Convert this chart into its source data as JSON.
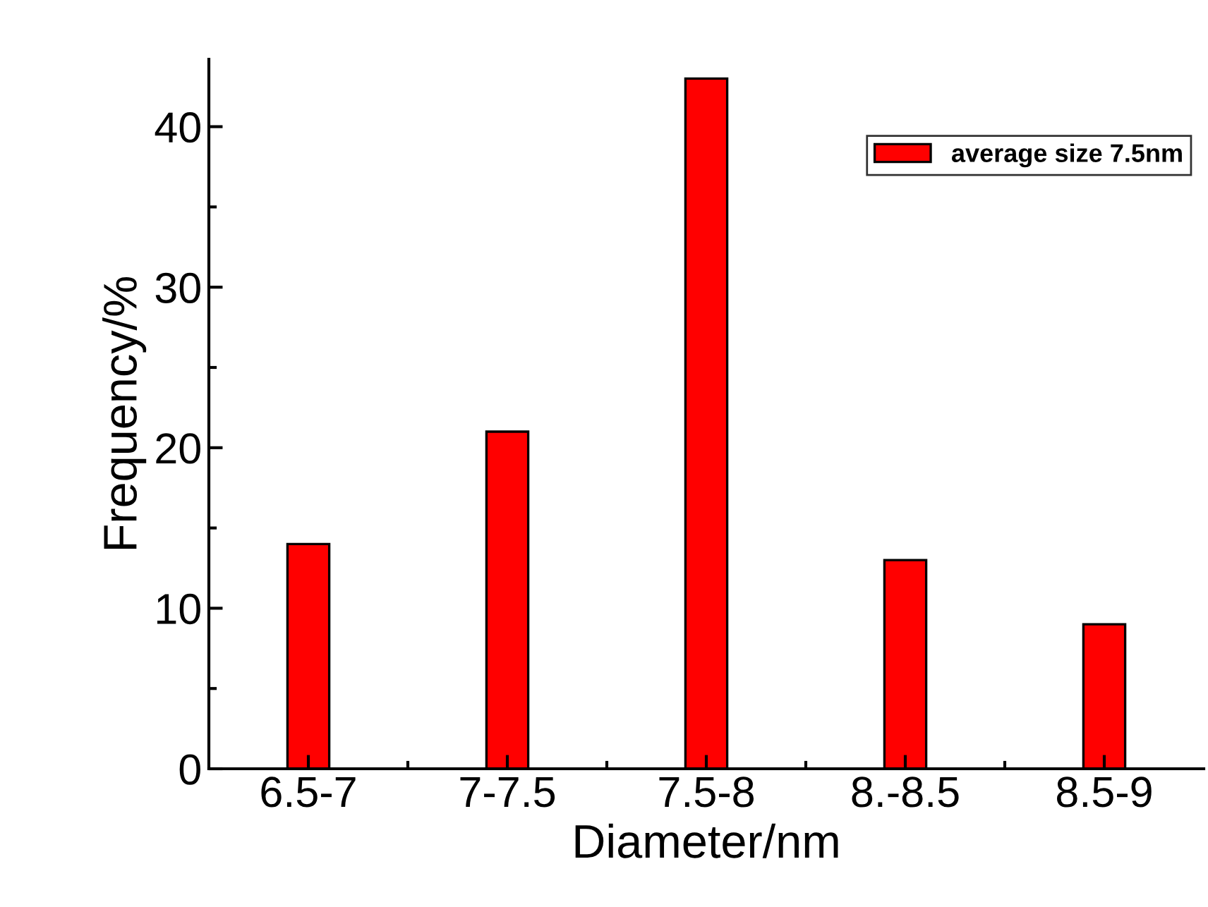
{
  "chart_data": {
    "type": "bar",
    "xlabel": "Diameter/nm",
    "ylabel": "Frequency/%",
    "categories": [
      "6.5-7",
      "7-7.5",
      "7.5-8",
      "8.-8.5",
      "8.5-9"
    ],
    "series": [
      {
        "name": "average size 7.5nm",
        "color": "#ff0000",
        "values": [
          14,
          21,
          43,
          13,
          9
        ]
      }
    ],
    "ylim": [
      0,
      44.2
    ],
    "yticks": [
      0,
      10,
      20,
      30,
      40
    ],
    "grid": false,
    "legend": "top right"
  }
}
